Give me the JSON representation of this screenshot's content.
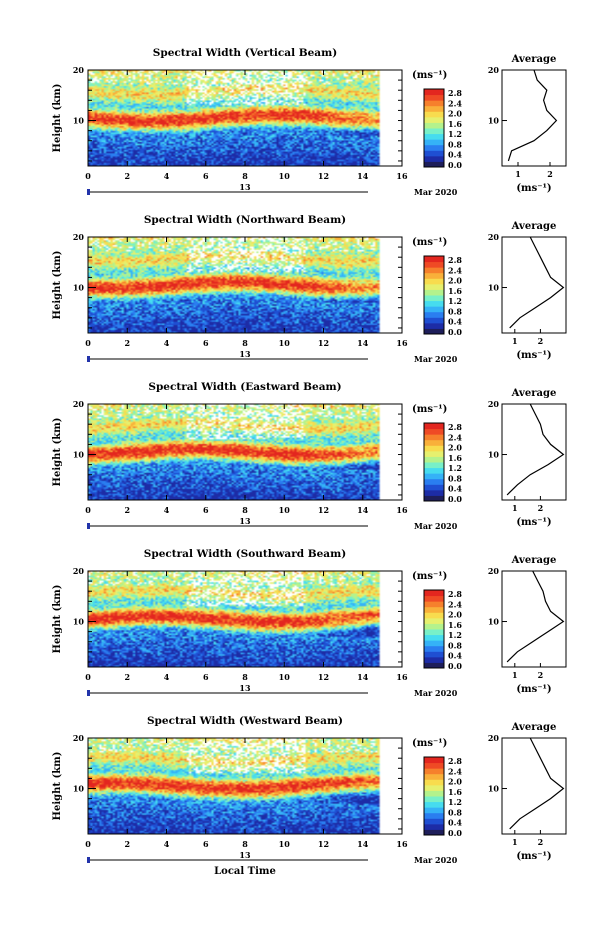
{
  "shared": {
    "ylabel": "Height (km)",
    "xlabel": "Local Time",
    "date_day": "13",
    "date_month_year": "Mar 2020",
    "avg_title": "Average",
    "units": "(ms⁻¹)"
  },
  "colorbar": {
    "ticks": [
      "2.8",
      "2.4",
      "2.0",
      "1.6",
      "1.2",
      "0.8",
      "0.4",
      "0.0"
    ],
    "colors": [
      "#1e1e5a",
      "#1d2ca6",
      "#1f4fd2",
      "#2a7ef0",
      "#35b2f7",
      "#46dcef",
      "#78f0c8",
      "#b4f28c",
      "#e6f06e",
      "#f8dc4e",
      "#f9b03a",
      "#f6802c",
      "#ef4a25",
      "#e3261f"
    ]
  },
  "chart_data": [
    {
      "type": "heatmap",
      "title": "Spectral Width (Vertical Beam)",
      "xlim": [
        0,
        16
      ],
      "ylim": [
        1,
        20
      ],
      "xticks": [
        0,
        2,
        4,
        6,
        8,
        10,
        12,
        14,
        16
      ],
      "yticks": [
        10,
        20
      ],
      "data_x_range": [
        0,
        16
      ],
      "profile": {
        "title": "Average",
        "xlabel": "(ms⁻¹)",
        "xticks": [
          "1",
          "2"
        ],
        "xlim": [
          0.5,
          2.5
        ],
        "heights": [
          2,
          4,
          6,
          8,
          10,
          12,
          14,
          16,
          18,
          20
        ],
        "values": [
          0.7,
          0.8,
          1.5,
          1.9,
          2.2,
          1.9,
          1.8,
          1.9,
          1.6,
          1.5
        ]
      }
    },
    {
      "type": "heatmap",
      "title": "Spectral Width (Northward Beam)",
      "xlim": [
        0,
        16
      ],
      "ylim": [
        1,
        20
      ],
      "xticks": [
        0,
        2,
        4,
        6,
        8,
        10,
        12,
        14,
        16
      ],
      "yticks": [
        10,
        20
      ],
      "data_x_range": [
        0,
        16
      ],
      "profile": {
        "title": "Average",
        "xlabel": "(ms⁻¹)",
        "xticks": [
          "1",
          "2"
        ],
        "xlim": [
          0.5,
          3.0
        ],
        "heights": [
          2,
          4,
          6,
          8,
          10,
          12,
          14,
          16,
          18,
          20
        ],
        "values": [
          0.8,
          1.2,
          1.8,
          2.4,
          2.9,
          2.4,
          2.2,
          2.0,
          1.8,
          1.6
        ]
      }
    },
    {
      "type": "heatmap",
      "title": "Spectral Width (Eastward Beam)",
      "xlim": [
        0,
        16
      ],
      "ylim": [
        1,
        20
      ],
      "xticks": [
        0,
        2,
        4,
        6,
        8,
        10,
        12,
        14,
        16
      ],
      "yticks": [
        10,
        20
      ],
      "data_x_range": [
        0,
        16
      ],
      "profile": {
        "title": "Average",
        "xlabel": "(ms⁻¹)",
        "xticks": [
          "1",
          "2"
        ],
        "xlim": [
          0.5,
          3.0
        ],
        "heights": [
          2,
          4,
          6,
          8,
          10,
          12,
          14,
          16,
          18,
          20
        ],
        "values": [
          0.7,
          1.1,
          1.6,
          2.3,
          2.9,
          2.4,
          2.1,
          2.0,
          1.8,
          1.6
        ]
      }
    },
    {
      "type": "heatmap",
      "title": "Spectral Width (Southward Beam)",
      "xlim": [
        0,
        16
      ],
      "ylim": [
        1,
        20
      ],
      "xticks": [
        0,
        2,
        4,
        6,
        8,
        10,
        12,
        14,
        16
      ],
      "yticks": [
        10,
        20
      ],
      "data_x_range": [
        0,
        16
      ],
      "profile": {
        "title": "Average",
        "xlabel": "(ms⁻¹)",
        "xticks": [
          "1",
          "2"
        ],
        "xlim": [
          0.5,
          3.0
        ],
        "heights": [
          2,
          4,
          6,
          8,
          10,
          12,
          14,
          16,
          18,
          20
        ],
        "values": [
          0.7,
          1.1,
          1.7,
          2.3,
          2.9,
          2.4,
          2.2,
          2.1,
          1.9,
          1.7
        ]
      }
    },
    {
      "type": "heatmap",
      "title": "Spectral Width (Westward Beam)",
      "xlim": [
        0,
        16
      ],
      "ylim": [
        1,
        20
      ],
      "xticks": [
        0,
        2,
        4,
        6,
        8,
        10,
        12,
        14,
        16
      ],
      "yticks": [
        10,
        20
      ],
      "data_x_range": [
        0,
        16
      ],
      "profile": {
        "title": "Average",
        "xlabel": "(ms⁻¹)",
        "xticks": [
          "1",
          "2"
        ],
        "xlim": [
          0.5,
          3.0
        ],
        "heights": [
          2,
          4,
          6,
          8,
          10,
          12,
          14,
          16,
          18,
          20
        ],
        "values": [
          0.8,
          1.2,
          1.8,
          2.4,
          2.9,
          2.4,
          2.2,
          2.0,
          1.8,
          1.6
        ]
      }
    }
  ]
}
